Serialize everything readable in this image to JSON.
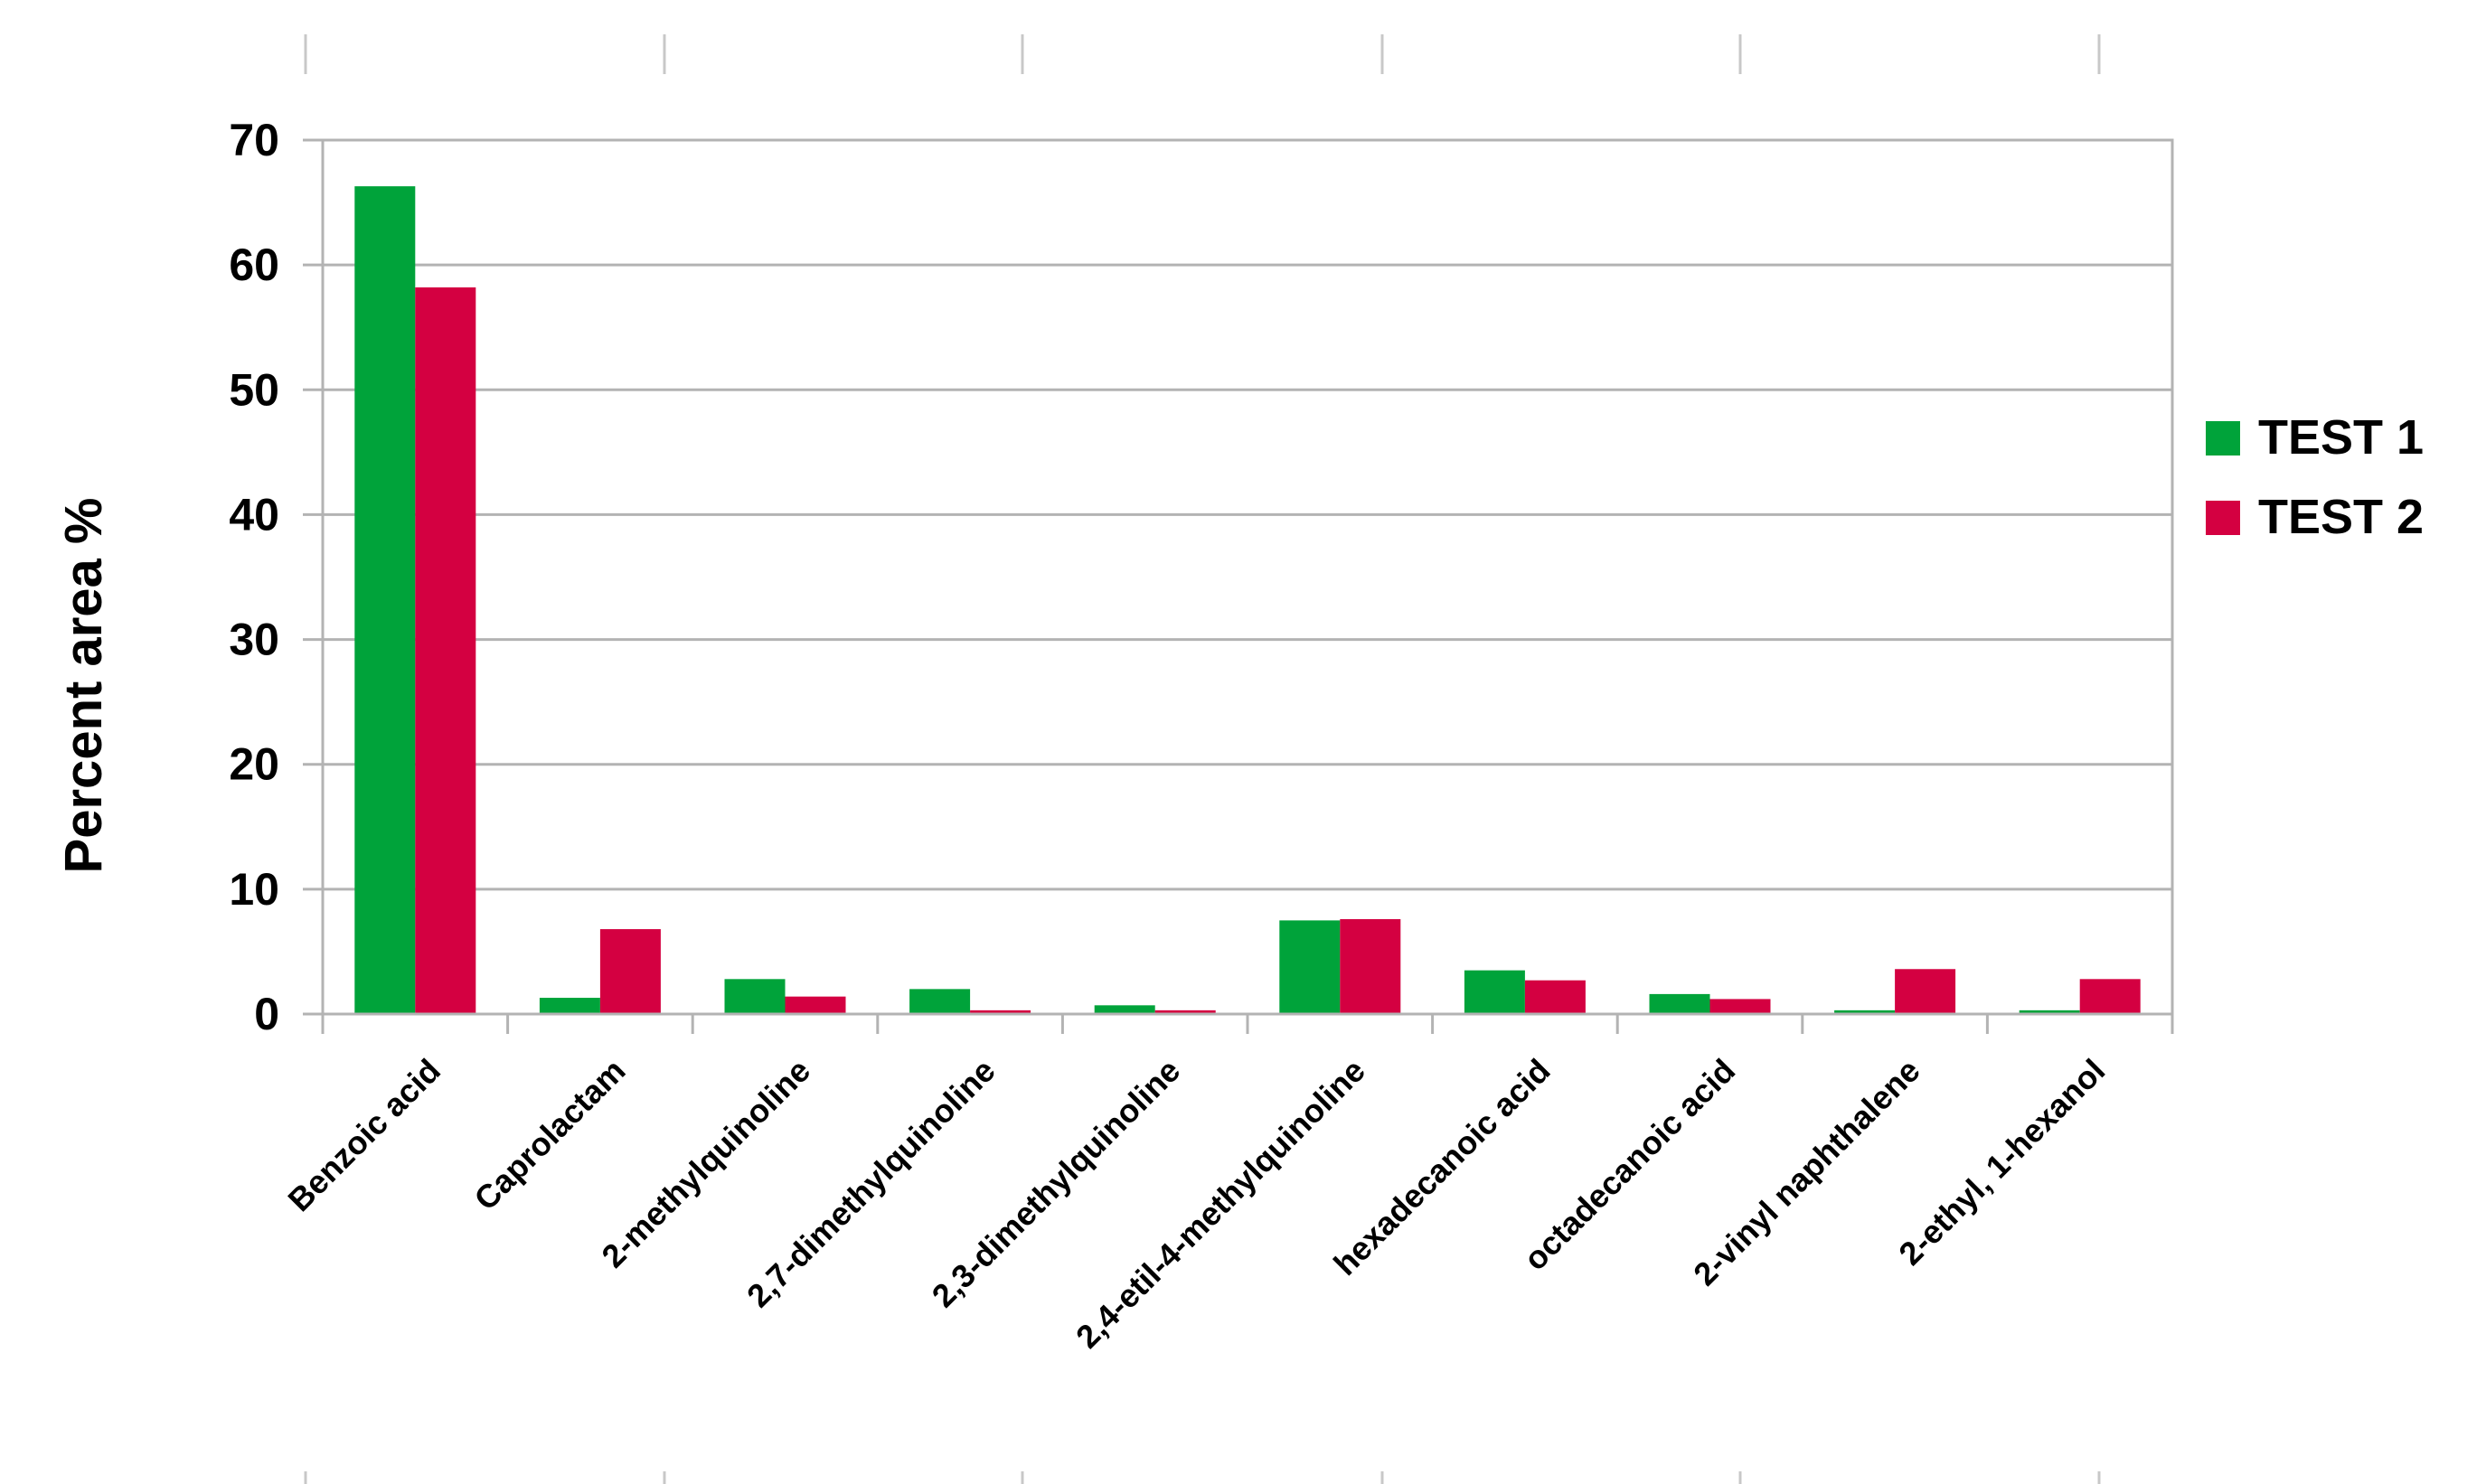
{
  "chart_data": {
    "type": "bar",
    "categories": [
      "Benzoic acid",
      "Caprolactam",
      "2-methylquinoline",
      "2,7-dimethylquinoline",
      "2,3-dimethylquinoline",
      "2,4-etil-4-methylquinoline",
      "hexadecanoic acid",
      "octadecanoic acid",
      "2-vinyl naphthalene",
      "2-ethyl, 1-hexanol"
    ],
    "series": [
      {
        "name": "TEST 1",
        "color": "#00a33a",
        "values": [
          66.3,
          1.3,
          2.8,
          2.0,
          0.7,
          7.5,
          3.5,
          1.6,
          0.3,
          0.3
        ]
      },
      {
        "name": "TEST 2",
        "color": "#d40041",
        "values": [
          58.2,
          6.8,
          1.4,
          0.3,
          0.3,
          7.6,
          2.7,
          1.2,
          3.6,
          2.8
        ]
      }
    ],
    "title": "",
    "xlabel": "",
    "ylabel": "Percent area %",
    "ylim": [
      0,
      70
    ],
    "yticks": [
      "0",
      "10",
      "20",
      "30",
      "40",
      "50",
      "60",
      "70"
    ],
    "grid": true,
    "legend_position": "right"
  }
}
